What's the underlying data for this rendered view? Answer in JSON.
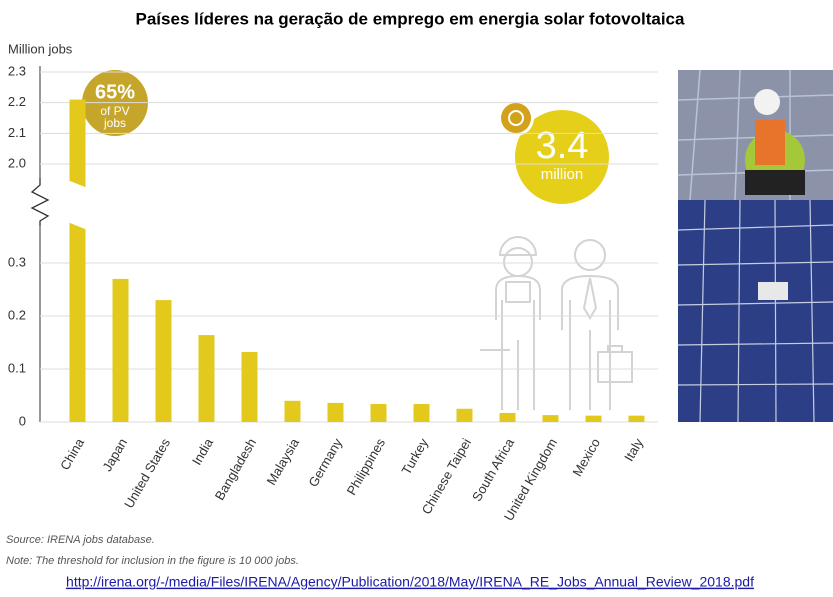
{
  "chart_data": {
    "type": "bar",
    "title": "Países líderes na geração de emprego em energia solar fotovoltaica",
    "y_label": "Million jobs",
    "categories": [
      "China",
      "Japan",
      "United States",
      "India",
      "Bangladesh",
      "Malaysia",
      "Germany",
      "Philippines",
      "Turkey",
      "Chinese Taipei",
      "South Africa",
      "United Kingdom",
      "Mexico",
      "Italy"
    ],
    "values": [
      2.21,
      0.27,
      0.23,
      0.164,
      0.132,
      0.04,
      0.036,
      0.034,
      0.034,
      0.025,
      0.017,
      0.013,
      0.012,
      0.012
    ],
    "color": "#e3c91c",
    "ylim": [
      0,
      2.3
    ],
    "yticks": [
      0,
      0.1,
      0.2,
      0.3,
      {
        "value": 2,
        "label": "2.0"
      },
      2.1,
      2.2,
      2.3
    ],
    "axis_break": true,
    "grid": true,
    "annotations": [
      "65%",
      "of PV",
      "jobs",
      "3.4",
      "million"
    ],
    "source": "Source: IRENA jobs database.",
    "note": "Note: The threshold for inclusion in the figure is 10 000 jobs.",
    "url": "http://irena.org/-/media/Files/IRENA/Agency/Publication/2018/May/IRENA_RE_Jobs_Annual_Review_2018.pdf"
  }
}
